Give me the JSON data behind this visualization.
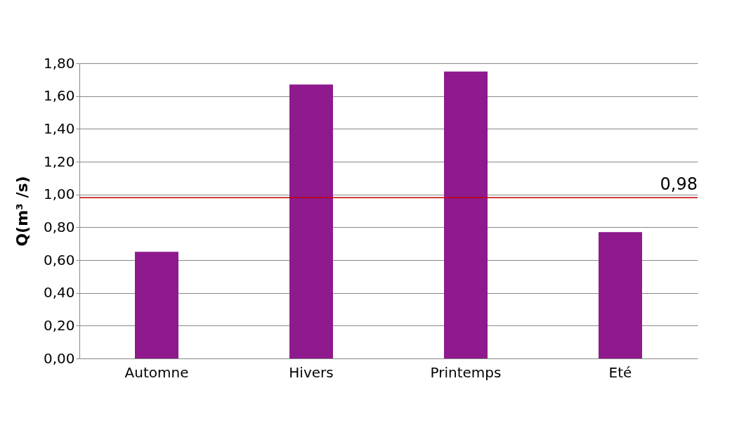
{
  "chart_data": {
    "type": "bar",
    "ylabel": "Q(m³ /s)",
    "categories": [
      "Automne",
      "Hivers",
      "Printemps",
      "Eté"
    ],
    "series": [
      {
        "color": "#8e1a8e",
        "values": [
          0.65,
          1.67,
          1.75,
          0.77
        ]
      }
    ],
    "ylim": [
      0,
      1.8
    ],
    "yticks": [
      {
        "value": 0,
        "label": "0,00"
      },
      {
        "value": 0.2,
        "label": "0,20"
      },
      {
        "value": 0.4,
        "label": "0,40"
      },
      {
        "value": 0.6,
        "label": "0,60"
      },
      {
        "value": 0.8,
        "label": "0,80"
      },
      {
        "value": 1,
        "label": "1,00"
      },
      {
        "value": 1.2,
        "label": "1,20"
      },
      {
        "value": 1.4,
        "label": "1,40"
      },
      {
        "value": 1.6,
        "label": "1,60"
      },
      {
        "value": 1.8,
        "label": "1,80"
      }
    ],
    "grid": "y",
    "legend": false,
    "ref_lines": [
      {
        "axis": "y",
        "value": 0.98,
        "label": "0,98",
        "color": "#c00000"
      }
    ]
  }
}
